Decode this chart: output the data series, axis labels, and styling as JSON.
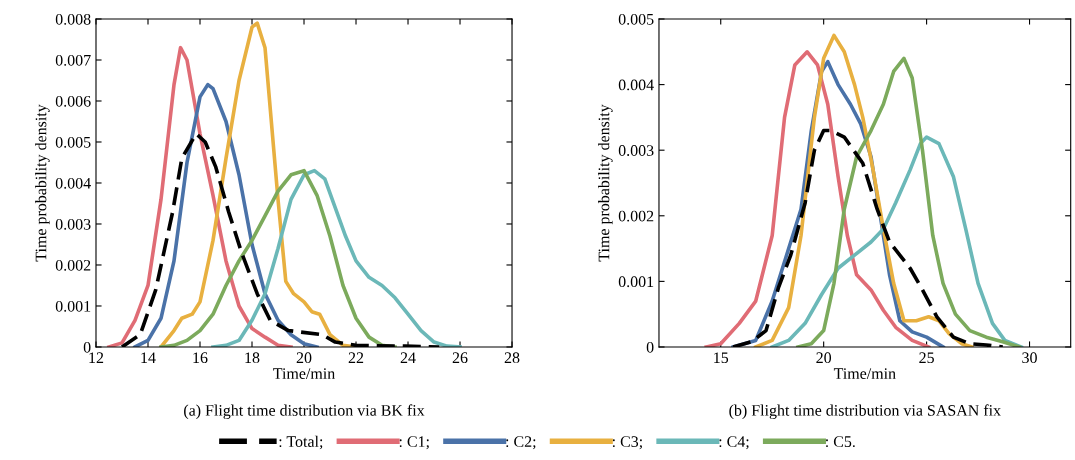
{
  "chart_data": [
    {
      "type": "line",
      "xlabel": "Time/min",
      "ylabel": "Time probability density",
      "xlim": [
        12,
        28
      ],
      "xticks": [
        12,
        14,
        16,
        18,
        20,
        22,
        24,
        26,
        28
      ],
      "ylim": [
        0,
        0.008
      ],
      "yticks": [
        0,
        0.001,
        0.002,
        0.003,
        0.004,
        0.005,
        0.006,
        0.007,
        0.008
      ],
      "grid": false,
      "legend": "bottom",
      "annotations": [
        "(a) Flight time distribution via BK fix"
      ],
      "series": [
        {
          "name": ": Total;",
          "color": "#000000",
          "line_style": "dashed",
          "x": [
            13.0,
            13.7,
            14.3,
            14.95,
            15.3,
            15.85,
            16.2,
            16.6,
            17.1,
            17.6,
            18.2,
            18.7,
            19.4,
            20.7,
            21.2,
            22.0,
            23.9,
            25.2
          ],
          "values": [
            0,
            0.0003,
            0.0014,
            0.0033,
            0.0046,
            0.0052,
            0.005,
            0.0044,
            0.0033,
            0.0023,
            0.0013,
            0.00065,
            0.0004,
            0.0003,
            0.00012,
            4e-05,
            2e-05,
            0
          ]
        },
        {
          "name": ": C1;",
          "color": "#e06c75",
          "line_style": "solid",
          "x": [
            12.5,
            13.0,
            13.5,
            14.0,
            14.5,
            15.0,
            15.25,
            15.5,
            16.0,
            16.5,
            17.0,
            17.5,
            18.0,
            18.5,
            19.0,
            19.5
          ],
          "values": [
            0,
            0.0001,
            0.00065,
            0.0015,
            0.0036,
            0.0064,
            0.0073,
            0.007,
            0.0052,
            0.0037,
            0.0021,
            0.001,
            0.00045,
            0.00024,
            4e-05,
            0
          ]
        },
        {
          "name": ": C2;",
          "color": "#4a72a8",
          "line_style": "solid",
          "x": [
            13.5,
            14.0,
            14.5,
            15.0,
            15.5,
            16.0,
            16.3,
            16.5,
            17.0,
            17.5,
            18.0,
            18.5,
            19.0,
            19.5,
            20.0,
            20.5
          ],
          "values": [
            0,
            0.00016,
            0.0007,
            0.0021,
            0.0045,
            0.0061,
            0.0064,
            0.0063,
            0.0055,
            0.0042,
            0.0025,
            0.0013,
            0.00065,
            0.0003,
            8e-05,
            0
          ]
        },
        {
          "name": ": C3;",
          "color": "#e8b040",
          "line_style": "solid",
          "x": [
            14.5,
            15.0,
            15.3,
            15.7,
            16.0,
            16.5,
            17.0,
            17.5,
            18.0,
            18.2,
            18.5,
            19.0,
            19.3,
            19.6,
            20.0,
            20.3,
            20.6,
            21.0,
            21.5,
            22.0
          ],
          "values": [
            0,
            0.0004,
            0.0007,
            0.0008,
            0.0011,
            0.0026,
            0.0046,
            0.0065,
            0.0078,
            0.0079,
            0.0073,
            0.0036,
            0.0016,
            0.0013,
            0.0011,
            0.00086,
            0.0008,
            0.0003,
            4e-05,
            0
          ]
        },
        {
          "name": ": C4;",
          "color": "#6bb8b8",
          "line_style": "solid",
          "x": [
            16.5,
            17.0,
            17.5,
            18.0,
            18.5,
            19.0,
            19.5,
            20.0,
            20.4,
            20.8,
            21.2,
            21.6,
            22.0,
            22.5,
            23.0,
            23.5,
            24.0,
            24.5,
            25.0,
            25.5,
            26.0
          ],
          "values": [
            0,
            4e-05,
            0.00016,
            0.00065,
            0.0013,
            0.0024,
            0.0036,
            0.0042,
            0.0043,
            0.0041,
            0.0034,
            0.0027,
            0.0021,
            0.0017,
            0.0015,
            0.0012,
            0.0008,
            0.0004,
            0.00012,
            2e-05,
            0
          ]
        },
        {
          "name": ": C5.",
          "color": "#7caa5c",
          "line_style": "solid",
          "x": [
            14.5,
            15.0,
            15.5,
            16.0,
            16.5,
            17.0,
            17.5,
            18.0,
            18.5,
            19.0,
            19.5,
            20.0,
            20.5,
            21.0,
            21.5,
            22.0,
            22.5,
            23.0,
            23.5
          ],
          "values": [
            0,
            4e-05,
            0.00016,
            0.0004,
            0.0008,
            0.0015,
            0.0021,
            0.0026,
            0.0032,
            0.0038,
            0.0042,
            0.0043,
            0.0037,
            0.0027,
            0.0015,
            0.0007,
            0.00024,
            4e-05,
            0
          ]
        }
      ]
    },
    {
      "type": "line",
      "xlabel": "Time/min",
      "ylabel": "Time probability density",
      "xlim": [
        12,
        32
      ],
      "xticks": [
        15,
        20,
        25,
        30
      ],
      "ylim": [
        0,
        0.005
      ],
      "yticks": [
        0,
        0.001,
        0.002,
        0.003,
        0.004,
        0.005
      ],
      "grid": false,
      "annotations": [
        "(b) Flight time distribution via SASAN fix"
      ],
      "series": [
        {
          "color": "#000000",
          "line_style": "dashed",
          "x": [
            15.6,
            16.5,
            17.2,
            17.8,
            18.4,
            19.1,
            19.55,
            20.0,
            20.35,
            21.0,
            21.9,
            22.6,
            23.2,
            24.2,
            24.8,
            25.5,
            26.3,
            27.1,
            27.9,
            28.7
          ],
          "values": [
            0,
            8e-05,
            0.00025,
            0.0009,
            0.0014,
            0.0022,
            0.003,
            0.0033,
            0.0033,
            0.0032,
            0.0028,
            0.0021,
            0.0016,
            0.0012,
            0.00087,
            0.00046,
            0.00015,
            5e-05,
            3e-05,
            0
          ]
        },
        {
          "color": "#e06c75",
          "line_style": "solid",
          "x": [
            14.3,
            15.0,
            15.9,
            16.7,
            17.5,
            18.1,
            18.6,
            19.2,
            19.7,
            20.2,
            20.7,
            21.15,
            21.6,
            22.3,
            22.9,
            23.5,
            24.3,
            25.1
          ],
          "values": [
            0,
            5e-05,
            0.00036,
            0.0007,
            0.0017,
            0.0035,
            0.0043,
            0.0045,
            0.0043,
            0.0037,
            0.0026,
            0.0017,
            0.0011,
            0.00087,
            0.00056,
            0.0003,
            0.0001,
            0
          ]
        },
        {
          "color": "#4a72a8",
          "line_style": "solid",
          "x": [
            15.6,
            16.7,
            17.5,
            18.3,
            18.9,
            19.4,
            19.9,
            20.2,
            20.7,
            21.3,
            21.8,
            22.3,
            22.7,
            23.2,
            23.7,
            24.3,
            25.0,
            25.8
          ],
          "values": [
            0,
            0.0001,
            0.0007,
            0.0015,
            0.0021,
            0.0033,
            0.0042,
            0.00435,
            0.004,
            0.0037,
            0.0034,
            0.0029,
            0.0021,
            0.0011,
            0.0004,
            0.00023,
            0.00015,
            0
          ]
        },
        {
          "color": "#e8b040",
          "line_style": "solid",
          "x": [
            16.7,
            17.5,
            18.3,
            18.9,
            19.55,
            20.0,
            20.5,
            21.0,
            21.5,
            21.9,
            22.4,
            22.9,
            23.4,
            23.9,
            24.5,
            25.1,
            25.6,
            26.1,
            26.7,
            27.2
          ],
          "values": [
            0,
            0.0001,
            0.0006,
            0.0017,
            0.0035,
            0.0044,
            0.00475,
            0.0045,
            0.004,
            0.0035,
            0.0027,
            0.0018,
            0.00097,
            0.0004,
            0.0004,
            0.00046,
            0.0004,
            0.0002,
            5e-05,
            0
          ]
        },
        {
          "color": "#6bb8b8",
          "line_style": "solid",
          "x": [
            17.5,
            18.3,
            19.1,
            19.9,
            20.7,
            21.5,
            22.3,
            22.9,
            23.5,
            24.2,
            24.7,
            25.0,
            25.6,
            26.3,
            26.9,
            27.5,
            28.2,
            28.8,
            29.6
          ],
          "values": [
            0,
            0.0001,
            0.00036,
            0.0008,
            0.0012,
            0.0014,
            0.0016,
            0.0018,
            0.0022,
            0.0027,
            0.0031,
            0.0032,
            0.0031,
            0.0026,
            0.0018,
            0.00097,
            0.00036,
            0.0001,
            0
          ]
        },
        {
          "color": "#7caa5c",
          "line_style": "solid",
          "x": [
            18.75,
            19.4,
            20.0,
            20.5,
            21.0,
            21.6,
            22.3,
            22.9,
            23.4,
            23.9,
            24.3,
            24.8,
            25.3,
            25.8,
            26.4,
            27.1,
            27.9,
            28.7,
            29.5
          ],
          "values": [
            0,
            5e-05,
            0.00025,
            0.00097,
            0.0021,
            0.0029,
            0.0033,
            0.0037,
            0.0042,
            0.0044,
            0.0041,
            0.003,
            0.0017,
            0.00097,
            0.0005,
            0.00025,
            0.00015,
            8e-05,
            0
          ]
        }
      ]
    }
  ]
}
